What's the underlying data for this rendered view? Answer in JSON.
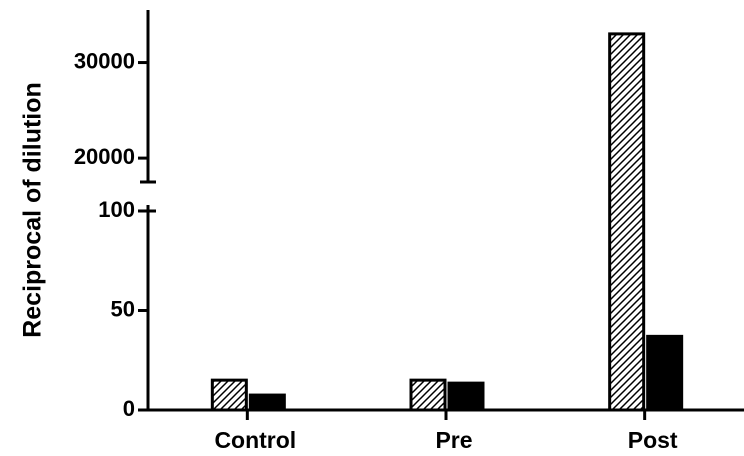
{
  "chart_data": {
    "type": "bar",
    "y_label": "Reciprocal of dilution",
    "categories": [
      "Control",
      "Pre",
      "Post"
    ],
    "series": [
      {
        "color": "#000000",
        "pattern": "hatch",
        "values": [
          15,
          15,
          33000
        ]
      },
      {
        "color": "#000000",
        "values": [
          7.5,
          13.5,
          37
        ]
      }
    ],
    "y_segments": [
      {
        "ylim": [
          0,
          103
        ],
        "yticks": [
          0,
          50,
          100
        ]
      },
      {
        "ylim": [
          17500,
          35500
        ],
        "yticks": [
          20000,
          30000
        ]
      }
    ]
  }
}
